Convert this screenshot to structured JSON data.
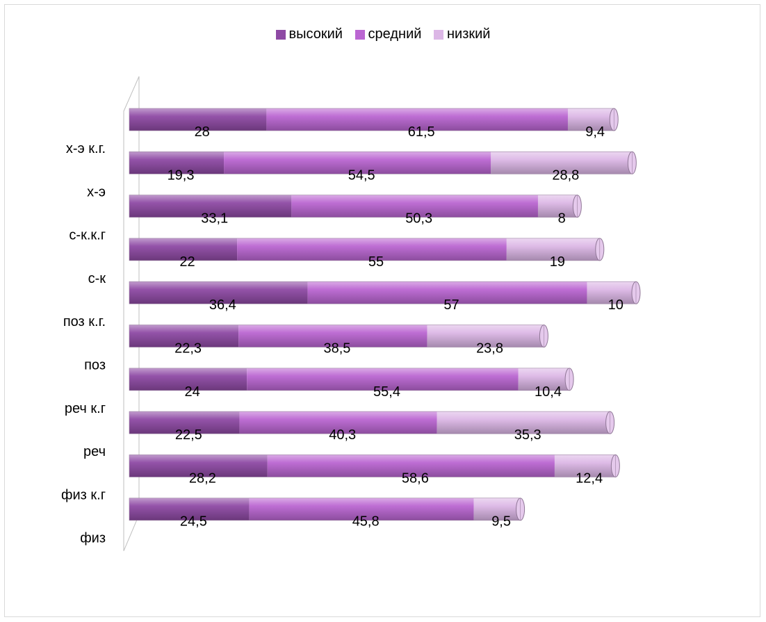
{
  "chart_data": {
    "type": "bar",
    "orientation": "horizontal",
    "stacked": true,
    "style": "3d-cylinder",
    "categories": [
      "х-э к.г.",
      "х-э",
      "с-к.к.г",
      "с-к",
      "поз к.г.",
      "поз",
      "реч к.г",
      "реч",
      "физ к.г",
      "физ"
    ],
    "series": [
      {
        "name": "высокий",
        "color": "#8e4aa4",
        "values": [
          28,
          19.3,
          33.1,
          22,
          36.4,
          22.3,
          24,
          22.5,
          28.2,
          24.5
        ],
        "labels": [
          "28",
          "19,3",
          "33,1",
          "22",
          "36,4",
          "22,3",
          "24",
          "22,5",
          "28,2",
          "24,5"
        ]
      },
      {
        "name": "средний",
        "color": "#bb66d2",
        "values": [
          61.5,
          54.5,
          50.3,
          55,
          57,
          38.5,
          55.4,
          40.3,
          58.6,
          45.8
        ],
        "labels": [
          "61,5",
          "54,5",
          "50,3",
          "55",
          "57",
          "38,5",
          "55,4",
          "40,3",
          "58,6",
          "45,8"
        ]
      },
      {
        "name": "низкий",
        "color": "#dcb7e6",
        "values": [
          9.4,
          28.8,
          8,
          19,
          10,
          23.8,
          10.4,
          35.3,
          12.4,
          9.5
        ],
        "labels": [
          "9,4",
          "28,8",
          "8",
          "19",
          "10",
          "23,8",
          "10,4",
          "35,3",
          "12,4",
          "9,5"
        ]
      }
    ],
    "xlim": [
      0,
      103
    ],
    "legend_position": "top",
    "grid": false
  }
}
